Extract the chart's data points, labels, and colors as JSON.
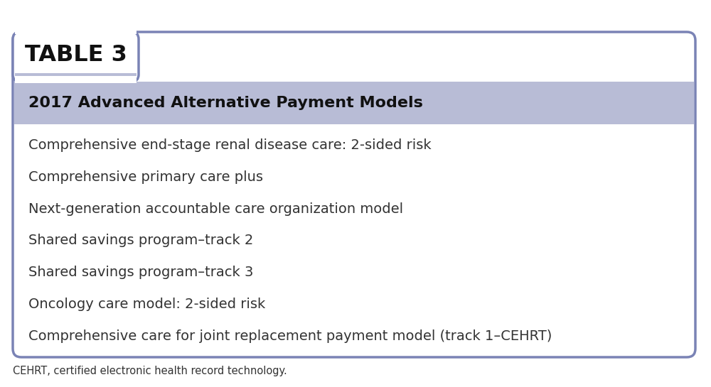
{
  "table_label": "TABLE 3",
  "header": "2017 Advanced Alternative Payment Models",
  "rows": [
    "Comprehensive end-stage renal disease care: 2-sided risk",
    "Comprehensive primary care plus",
    "Next-generation accountable care organization model",
    "Shared savings program–track 2",
    "Shared savings program–track 3",
    "Oncology care model: 2-sided risk",
    "Comprehensive care for joint replacement payment model (track 1–CEHRT)"
  ],
  "footnote": "CEHRT, certified electronic health record technology.",
  "colors": {
    "tab_label_bg": "#ffffff",
    "tab_label_text": "#111111",
    "header_bg": "#b8bcd6",
    "header_text": "#111111",
    "body_bg": "#ffffff",
    "body_text": "#333333",
    "border": "#7a83b5",
    "fig_bg": "#ffffff",
    "footnote_text": "#333333"
  },
  "figsize": [
    10.0,
    5.45
  ],
  "dpi": 100
}
